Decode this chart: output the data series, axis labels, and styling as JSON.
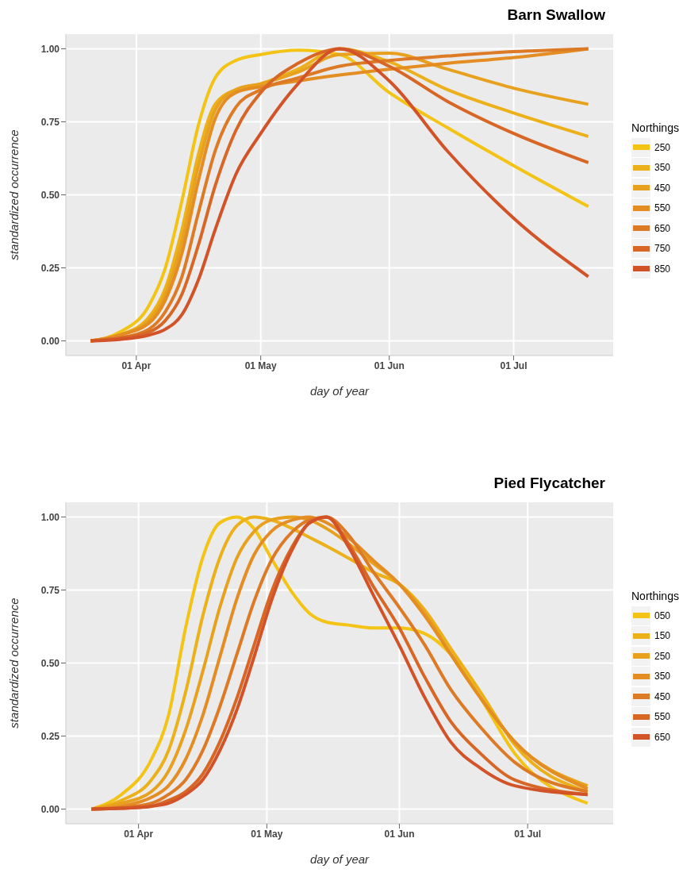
{
  "chart_data": [
    {
      "type": "line",
      "title": "Barn Swallow",
      "xlabel": "day of year",
      "ylabel": "standardized occurrence",
      "legend_title": "Northings",
      "legend": "right",
      "grid": true,
      "x": [
        "--03-21",
        "--03-28",
        "--04-04",
        "--04-08",
        "--04-12",
        "--04-16",
        "--04-20",
        "--04-25",
        "--05-01",
        "--05-10",
        "--05-20",
        "--06-01",
        "--06-15",
        "--07-01",
        "--07-19"
      ],
      "xlim": [
        "--03-15",
        "--07-25"
      ],
      "xticks": [
        {
          "value": "--04-01",
          "label": "01 Apr"
        },
        {
          "value": "--05-01",
          "label": "01 May"
        },
        {
          "value": "--06-01",
          "label": "01 Jun"
        },
        {
          "value": "--07-01",
          "label": "01 Jul"
        }
      ],
      "ylim": [
        -0.05,
        1.05
      ],
      "yticks": [
        {
          "value": 0,
          "label": "0.00"
        },
        {
          "value": 0.25,
          "label": "0.25"
        },
        {
          "value": 0.5,
          "label": "0.50"
        },
        {
          "value": 0.75,
          "label": "0.75"
        },
        {
          "value": 1,
          "label": "1.00"
        }
      ],
      "series": [
        {
          "name": "250",
          "color": "#f3c315",
          "values": [
            0,
            0.03,
            0.12,
            0.25,
            0.48,
            0.74,
            0.9,
            0.96,
            0.98,
            0.995,
            0.98,
            0.85,
            0.73,
            0.6,
            0.46
          ]
        },
        {
          "name": "350",
          "color": "#ecb11a",
          "values": [
            0,
            0.02,
            0.08,
            0.18,
            0.38,
            0.64,
            0.81,
            0.86,
            0.88,
            0.93,
            1.0,
            0.955,
            0.86,
            0.78,
            0.7
          ]
        },
        {
          "name": "450",
          "color": "#e8a11e",
          "values": [
            0,
            0.02,
            0.07,
            0.16,
            0.34,
            0.6,
            0.79,
            0.86,
            0.88,
            0.92,
            0.98,
            0.985,
            0.93,
            0.865,
            0.81
          ]
        },
        {
          "name": "550",
          "color": "#e38d22",
          "values": [
            0,
            0.02,
            0.06,
            0.14,
            0.3,
            0.55,
            0.76,
            0.85,
            0.87,
            0.89,
            0.91,
            0.93,
            0.95,
            0.97,
            1.0
          ]
        },
        {
          "name": "650",
          "color": "#dd7a25",
          "values": [
            0,
            0.01,
            0.04,
            0.1,
            0.22,
            0.44,
            0.65,
            0.8,
            0.86,
            0.9,
            0.94,
            0.96,
            0.975,
            0.99,
            1.0
          ]
        },
        {
          "name": "750",
          "color": "#d86726",
          "values": [
            0,
            0.01,
            0.03,
            0.07,
            0.16,
            0.33,
            0.53,
            0.72,
            0.85,
            0.95,
            1.0,
            0.94,
            0.82,
            0.71,
            0.61
          ]
        },
        {
          "name": "850",
          "color": "#d25328",
          "values": [
            0,
            0.005,
            0.02,
            0.04,
            0.09,
            0.21,
            0.38,
            0.57,
            0.71,
            0.88,
            1.0,
            0.89,
            0.65,
            0.42,
            0.22
          ]
        }
      ]
    },
    {
      "type": "line",
      "title": "Pied Flycatcher",
      "xlabel": "day of year",
      "ylabel": "standardized occurrence",
      "legend_title": "Northings",
      "legend": "right",
      "grid": true,
      "x": [
        "--03-21",
        "--03-28",
        "--04-04",
        "--04-08",
        "--04-12",
        "--04-16",
        "--04-20",
        "--04-24",
        "--04-28",
        "--05-02",
        "--05-07",
        "--05-11",
        "--05-15",
        "--05-20",
        "--05-26",
        "--06-01",
        "--06-07",
        "--06-13",
        "--06-20",
        "--06-28",
        "--07-15"
      ],
      "xlim": [
        "--03-15",
        "--07-21"
      ],
      "xticks": [
        {
          "value": "--04-01",
          "label": "01 Apr"
        },
        {
          "value": "--05-01",
          "label": "01 May"
        },
        {
          "value": "--06-01",
          "label": "01 Jun"
        },
        {
          "value": "--07-01",
          "label": "01 Jul"
        }
      ],
      "ylim": [
        -0.05,
        1.05
      ],
      "yticks": [
        {
          "value": 0,
          "label": "0.00"
        },
        {
          "value": 0.25,
          "label": "0.25"
        },
        {
          "value": 0.5,
          "label": "0.50"
        },
        {
          "value": 0.75,
          "label": "0.75"
        },
        {
          "value": 1,
          "label": "1.00"
        }
      ],
      "series": [
        {
          "name": "050",
          "color": "#f3c315",
          "values": [
            0,
            0.05,
            0.17,
            0.32,
            0.62,
            0.86,
            0.98,
            1.0,
            0.96,
            0.86,
            0.74,
            0.67,
            0.64,
            0.63,
            0.62,
            0.62,
            0.6,
            0.53,
            0.38,
            0.19,
            0.02
          ]
        },
        {
          "name": "150",
          "color": "#ecb11a",
          "values": [
            0,
            0.03,
            0.1,
            0.2,
            0.4,
            0.66,
            0.86,
            0.97,
            1.0,
            0.99,
            0.96,
            0.93,
            0.9,
            0.86,
            0.81,
            0.77,
            0.68,
            0.55,
            0.4,
            0.22,
            0.06
          ]
        },
        {
          "name": "250",
          "color": "#e8a11e",
          "values": [
            0,
            0.02,
            0.06,
            0.13,
            0.27,
            0.47,
            0.69,
            0.86,
            0.95,
            0.99,
            1.0,
            0.99,
            0.96,
            0.91,
            0.84,
            0.77,
            0.67,
            0.53,
            0.38,
            0.23,
            0.08
          ]
        },
        {
          "name": "350",
          "color": "#e38d22",
          "values": [
            0,
            0.01,
            0.04,
            0.08,
            0.17,
            0.32,
            0.52,
            0.72,
            0.87,
            0.95,
            0.99,
            1.0,
            0.98,
            0.93,
            0.85,
            0.77,
            0.66,
            0.53,
            0.38,
            0.23,
            0.07
          ]
        },
        {
          "name": "450",
          "color": "#dd7a25",
          "values": [
            0,
            0.005,
            0.02,
            0.05,
            0.1,
            0.2,
            0.35,
            0.53,
            0.71,
            0.85,
            0.95,
            0.99,
            1.0,
            0.94,
            0.81,
            0.69,
            0.56,
            0.41,
            0.28,
            0.16,
            0.06
          ]
        },
        {
          "name": "550",
          "color": "#d86726",
          "values": [
            0,
            0.003,
            0.01,
            0.03,
            0.06,
            0.12,
            0.23,
            0.38,
            0.56,
            0.74,
            0.9,
            0.98,
            1.0,
            0.91,
            0.76,
            0.62,
            0.45,
            0.3,
            0.19,
            0.1,
            0.05
          ]
        },
        {
          "name": "650",
          "color": "#d25328",
          "values": [
            0,
            0.003,
            0.01,
            0.02,
            0.05,
            0.1,
            0.2,
            0.34,
            0.52,
            0.71,
            0.89,
            0.98,
            1.0,
            0.9,
            0.73,
            0.56,
            0.38,
            0.23,
            0.14,
            0.08,
            0.05
          ]
        }
      ]
    }
  ]
}
